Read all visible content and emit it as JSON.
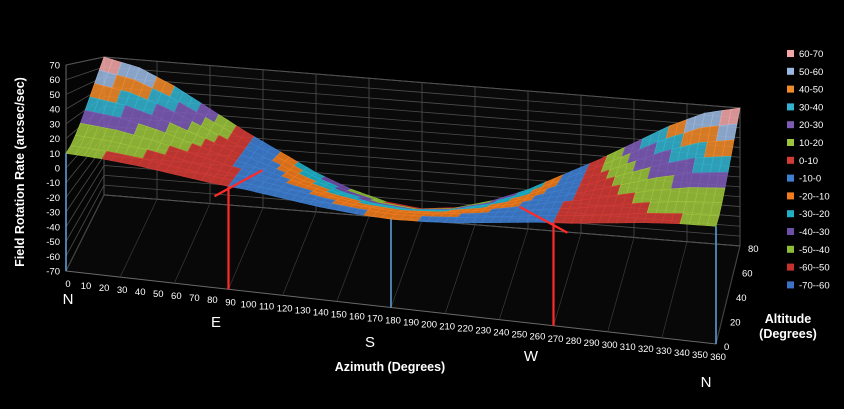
{
  "chart_data": {
    "type": "surface",
    "title": "",
    "xlabel": "Azimuth (Degrees)",
    "ylabel": "Field Rotation Rate (arcsec/sec)",
    "zlabel": "Altitude (Degrees)",
    "x_ticks": [
      "0",
      "10",
      "20",
      "30",
      "40",
      "50",
      "60",
      "70",
      "80",
      "90",
      "100",
      "110",
      "120",
      "130",
      "140",
      "150",
      "160",
      "170",
      "180",
      "190",
      "200",
      "210",
      "220",
      "230",
      "240",
      "250",
      "260",
      "270",
      "280",
      "290",
      "300",
      "310",
      "320",
      "330",
      "340",
      "350",
      "360"
    ],
    "y_ticks": [
      "70",
      "60",
      "50",
      "40",
      "30",
      "20",
      "10",
      "0",
      "-10",
      "-20",
      "-30",
      "-40",
      "-50",
      "-60",
      "-70"
    ],
    "z_ticks": [
      "0",
      "20",
      "40",
      "60",
      "80"
    ],
    "ylim": [
      -70,
      70
    ],
    "xlim": [
      0,
      360
    ],
    "zlim": [
      0,
      80
    ],
    "compass_labels": [
      {
        "label": "N",
        "azimuth": 0
      },
      {
        "label": "E",
        "azimuth": 90
      },
      {
        "label": "S",
        "azimuth": 180
      },
      {
        "label": "W",
        "azimuth": 270
      },
      {
        "label": "N",
        "azimuth": 360
      }
    ],
    "legend": {
      "placement": "right",
      "entries": [
        {
          "label": "60-70",
          "color": "#f2a6a6"
        },
        {
          "label": "50-60",
          "color": "#9bb8e0"
        },
        {
          "label": "40-50",
          "color": "#f08a2a"
        },
        {
          "label": "30-40",
          "color": "#33b3cf"
        },
        {
          "label": "20-30",
          "color": "#7c5bb5"
        },
        {
          "label": "10-20",
          "color": "#9cc43c"
        },
        {
          "label": "0-10",
          "color": "#d33b36"
        },
        {
          "label": "-10-0",
          "color": "#3f7fd1"
        },
        {
          "label": "-20--10",
          "color": "#f07c1e"
        },
        {
          "label": "-30--20",
          "color": "#1fb0c8"
        },
        {
          "label": "-40--30",
          "color": "#6e4fa8"
        },
        {
          "label": "-50--40",
          "color": "#8ebe37"
        },
        {
          "label": "-60--50",
          "color": "#c7312c"
        },
        {
          "label": "-70--60",
          "color": "#3b72c6"
        }
      ]
    },
    "series": [
      {
        "azimuth": [
          0,
          20,
          40,
          60,
          80,
          90,
          100,
          120,
          140,
          160,
          180,
          200,
          220,
          240,
          260,
          270,
          280,
          300,
          320,
          340,
          360
        ],
        "rate_at_max_altitude": [
          70,
          62,
          46,
          26,
          6,
          -3,
          -12,
          -30,
          -44,
          -54,
          -58,
          -54,
          -44,
          -30,
          -12,
          -3,
          6,
          26,
          46,
          62,
          70
        ],
        "rate_at_min_altitude": [
          10,
          9,
          7,
          4,
          1,
          0,
          -1,
          -4,
          -7,
          -9,
          -10,
          -9,
          -7,
          -4,
          -1,
          0,
          1,
          4,
          7,
          9,
          10
        ]
      }
    ],
    "grid": true
  }
}
